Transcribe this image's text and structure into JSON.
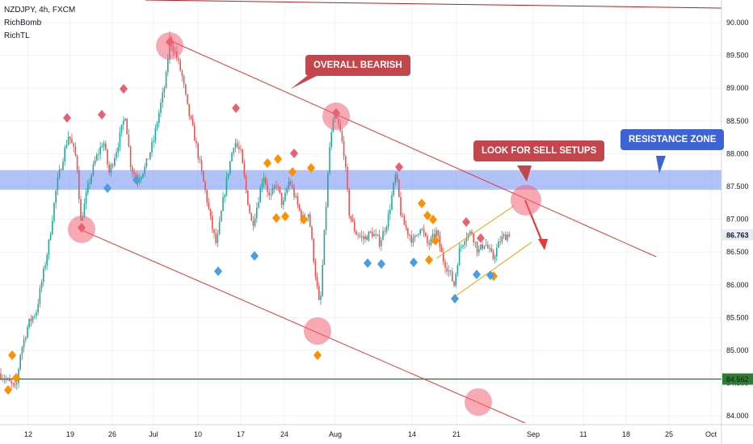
{
  "legend": {
    "symbol_line": "NZDJPY, 4h, FXCM",
    "indicator_1": "RichBomb",
    "indicator_2": "RichTL"
  },
  "annotations": {
    "overall": "OVERALL BEARISH",
    "sell": "LOOK FOR SELL SETUPS",
    "resistance": "RESISTANCE ZONE"
  },
  "colors": {
    "up": "#26a69a",
    "down": "#ef5350",
    "trendline": "#e53935",
    "zone": "#6f8ff2",
    "support": "#2e7d32",
    "channel": "#ff9800",
    "circle": "#f06277",
    "diamond_orange": "#ff9100",
    "diamond_blue": "#4a9fe0",
    "diamond_red": "#e9616f"
  },
  "chart_data": {
    "type": "candlestick",
    "instrument": "NZDJPY",
    "timeframe": "4h",
    "source": "FXCM",
    "y_ticks": [
      84.0,
      84.5,
      85.0,
      85.5,
      86.0,
      86.5,
      87.0,
      87.5,
      88.0,
      88.5,
      89.0,
      89.5,
      90.0
    ],
    "y_tick_labels": [
      "84.000",
      "84.500",
      "85.000",
      "85.500",
      "86.000",
      "86.500",
      "87.000",
      "87.500",
      "88.000",
      "88.500",
      "89.000",
      "89.500",
      "90.000"
    ],
    "x_tick_labels": [
      "12",
      "19",
      "26",
      "Jul",
      "10",
      "17",
      "24",
      "Aug",
      "14",
      "21",
      "Sep",
      "11",
      "18",
      "25",
      "Oct"
    ],
    "current_price": "86.763",
    "support_price": "84.562",
    "resistance_zone": [
      87.45,
      87.75
    ],
    "path": [
      [
        0,
        84.65
      ],
      [
        20,
        84.4
      ],
      [
        25,
        84.95
      ],
      [
        35,
        85.4
      ],
      [
        45,
        85.6
      ],
      [
        60,
        86.6
      ],
      [
        70,
        87.5
      ],
      [
        78,
        87.95
      ],
      [
        85,
        88.3
      ],
      [
        95,
        87.9
      ],
      [
        100,
        86.95
      ],
      [
        110,
        87.55
      ],
      [
        118,
        87.9
      ],
      [
        128,
        88.2
      ],
      [
        135,
        87.7
      ],
      [
        145,
        88.1
      ],
      [
        155,
        88.6
      ],
      [
        162,
        87.8
      ],
      [
        170,
        87.6
      ],
      [
        180,
        87.8
      ],
      [
        190,
        88.2
      ],
      [
        198,
        88.7
      ],
      [
        205,
        89.1
      ],
      [
        210,
        89.75
      ],
      [
        218,
        89.5
      ],
      [
        225,
        89.2
      ],
      [
        232,
        88.7
      ],
      [
        240,
        88.3
      ],
      [
        248,
        87.8
      ],
      [
        256,
        87.3
      ],
      [
        262,
        86.9
      ],
      [
        268,
        86.6
      ],
      [
        275,
        87.2
      ],
      [
        282,
        87.7
      ],
      [
        290,
        88.2
      ],
      [
        298,
        88.0
      ],
      [
        305,
        87.4
      ],
      [
        312,
        86.9
      ],
      [
        318,
        87.2
      ],
      [
        326,
        87.7
      ],
      [
        334,
        87.3
      ],
      [
        342,
        87.55
      ],
      [
        350,
        87.2
      ],
      [
        358,
        87.6
      ],
      [
        366,
        87.3
      ],
      [
        374,
        87.0
      ],
      [
        382,
        87.1
      ],
      [
        390,
        86.2
      ],
      [
        396,
        85.6
      ],
      [
        402,
        86.9
      ],
      [
        408,
        88.1
      ],
      [
        414,
        88.6
      ],
      [
        420,
        88.4
      ],
      [
        426,
        88.0
      ],
      [
        432,
        87.1
      ],
      [
        440,
        86.8
      ],
      [
        450,
        86.7
      ],
      [
        460,
        86.8
      ],
      [
        470,
        86.65
      ],
      [
        480,
        87.0
      ],
      [
        490,
        87.7
      ],
      [
        497,
        87.0
      ],
      [
        505,
        86.8
      ],
      [
        512,
        86.65
      ],
      [
        520,
        86.9
      ],
      [
        530,
        86.6
      ],
      [
        540,
        86.8
      ],
      [
        548,
        86.4
      ],
      [
        556,
        86.2
      ],
      [
        562,
        86.0
      ],
      [
        568,
        86.5
      ],
      [
        576,
        86.75
      ],
      [
        584,
        86.8
      ],
      [
        592,
        86.5
      ],
      [
        600,
        86.65
      ],
      [
        610,
        86.4
      ],
      [
        620,
        86.7
      ],
      [
        632,
        86.8
      ]
    ]
  }
}
